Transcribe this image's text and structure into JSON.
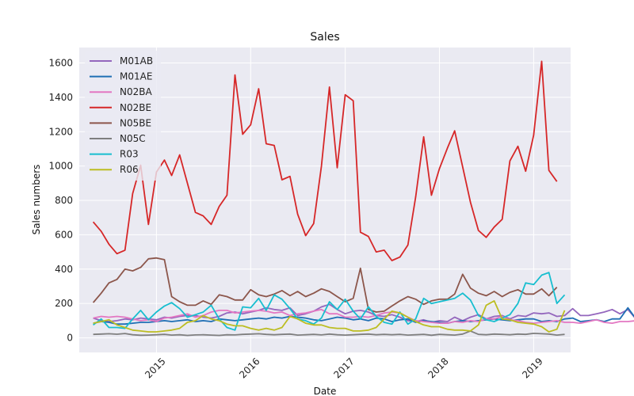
{
  "chart_data": {
    "type": "line",
    "title": "Sales",
    "xlabel": "Date",
    "ylabel": "Sales numbers",
    "x_start": "2014-05",
    "x_labels": [
      "2015",
      "2016",
      "2017",
      "2018",
      "2019"
    ],
    "xlim": [
      "2014-03-08",
      "2019-05-24"
    ],
    "ylim": [
      -85,
      1690
    ],
    "y_ticks": [
      0,
      200,
      400,
      600,
      800,
      1000,
      1200,
      1400,
      1600
    ],
    "grid": true,
    "legend_position": "top-left",
    "series": [
      {
        "name": "M01AB",
        "color": "#9467bd",
        "values": [
          115,
          100,
          95,
          100,
          110,
          105,
          115,
          110,
          105,
          120,
          115,
          125,
          130,
          130,
          120,
          115,
          125,
          145,
          150,
          140,
          150,
          160,
          175,
          165,
          160,
          175,
          130,
          140,
          155,
          180,
          195,
          165,
          140,
          155,
          160,
          150,
          130,
          125,
          135,
          120,
          100,
          95,
          105,
          90,
          100,
          95,
          120,
          100,
          120,
          135,
          110,
          125,
          130,
          110,
          130,
          125,
          145,
          140,
          145,
          125,
          130,
          170,
          130,
          130,
          140,
          150,
          165,
          140,
          165,
          110,
          135
        ]
      },
      {
        "name": "M01AE",
        "color": "#1f6fb4",
        "values": [
          85,
          95,
          90,
          80,
          80,
          85,
          90,
          90,
          95,
          100,
          95,
          100,
          105,
          95,
          100,
          95,
          110,
          105,
          100,
          105,
          110,
          115,
          110,
          120,
          115,
          125,
          120,
          115,
          105,
          100,
          110,
          120,
          115,
          105,
          110,
          100,
          115,
          110,
          95,
          105,
          110,
          90,
          100,
          95,
          90,
          85,
          95,
          100,
          95,
          100,
          105,
          110,
          105,
          100,
          105,
          110,
          110,
          95,
          100,
          95,
          110,
          115,
          95,
          100,
          105,
          95,
          110,
          110,
          175,
          110,
          95
        ]
      },
      {
        "name": "N02BA",
        "color": "#e377c2",
        "values": [
          115,
          125,
          120,
          125,
          120,
          110,
          100,
          105,
          95,
          115,
          120,
          130,
          140,
          120,
          130,
          150,
          160,
          160,
          145,
          150,
          155,
          160,
          155,
          145,
          150,
          130,
          140,
          145,
          155,
          165,
          140,
          140,
          120,
          120,
          125,
          120,
          130,
          145,
          150,
          145,
          120,
          100,
          95,
          90,
          85,
          85,
          95,
          90,
          100,
          95,
          110,
          110,
          125,
          105,
          100,
          90,
          85,
          90,
          95,
          100,
          90,
          90,
          85,
          95,
          105,
          90,
          85,
          95,
          95,
          100,
          105
        ]
      },
      {
        "name": "N02BE",
        "color": "#d62728",
        "values": [
          675,
          620,
          545,
          490,
          510,
          840,
          1005,
          660,
          965,
          1035,
          945,
          1065,
          900,
          730,
          710,
          660,
          765,
          830,
          1530,
          1185,
          1240,
          1450,
          1130,
          1120,
          920,
          940,
          720,
          595,
          665,
          1000,
          1460,
          990,
          1415,
          1380,
          615,
          590,
          500,
          510,
          450,
          470,
          540,
          820,
          1170,
          830,
          985,
          1105,
          1205,
          995,
          790,
          625,
          585,
          645,
          690,
          1030,
          1115,
          970,
          1180,
          1610,
          975,
          910
        ]
      },
      {
        "name": "N05BE",
        "color": "#8c564b",
        "values": [
          205,
          260,
          320,
          340,
          400,
          390,
          410,
          460,
          465,
          455,
          240,
          210,
          190,
          190,
          215,
          195,
          250,
          240,
          220,
          220,
          280,
          250,
          240,
          255,
          275,
          245,
          270,
          240,
          260,
          285,
          270,
          240,
          210,
          230,
          405,
          165,
          150,
          155,
          185,
          215,
          240,
          225,
          195,
          215,
          225,
          225,
          255,
          370,
          290,
          260,
          245,
          270,
          240,
          265,
          280,
          255,
          255,
          285,
          245,
          295
        ]
      },
      {
        "name": "N05C",
        "color": "#7f7f7f",
        "values": [
          20,
          22,
          24,
          21,
          25,
          18,
          15,
          16,
          18,
          20,
          16,
          18,
          14,
          17,
          18,
          16,
          14,
          18,
          17,
          20,
          22,
          24,
          20,
          18,
          20,
          22,
          16,
          18,
          20,
          17,
          22,
          18,
          16,
          18,
          20,
          22,
          18,
          20,
          18,
          20,
          16,
          18,
          20,
          15,
          20,
          18,
          16,
          22,
          40,
          20,
          18,
          22,
          20,
          18,
          22,
          20,
          26,
          24,
          22,
          16,
          20
        ]
      },
      {
        "name": "R03",
        "color": "#17becf",
        "values": [
          75,
          110,
          60,
          60,
          55,
          110,
          160,
          105,
          150,
          185,
          205,
          170,
          120,
          135,
          150,
          190,
          110,
          60,
          45,
          180,
          175,
          230,
          160,
          250,
          225,
          170,
          110,
          100,
          80,
          115,
          210,
          165,
          225,
          155,
          110,
          180,
          125,
          90,
          80,
          150,
          80,
          110,
          230,
          200,
          210,
          220,
          230,
          260,
          220,
          130,
          105,
          95,
          115,
          135,
          200,
          320,
          310,
          365,
          380,
          200,
          250
        ]
      },
      {
        "name": "R06",
        "color": "#bcbd22",
        "values": [
          85,
          95,
          105,
          75,
          60,
          45,
          40,
          35,
          35,
          40,
          45,
          55,
          90,
          100,
          130,
          110,
          100,
          80,
          70,
          70,
          55,
          45,
          55,
          45,
          60,
          125,
          110,
          85,
          75,
          75,
          60,
          55,
          55,
          40,
          40,
          45,
          60,
          110,
          155,
          145,
          120,
          95,
          75,
          65,
          65,
          50,
          45,
          45,
          40,
          75,
          190,
          215,
          110,
          105,
          90,
          85,
          80,
          65,
          35,
          50,
          160
        ]
      }
    ]
  }
}
